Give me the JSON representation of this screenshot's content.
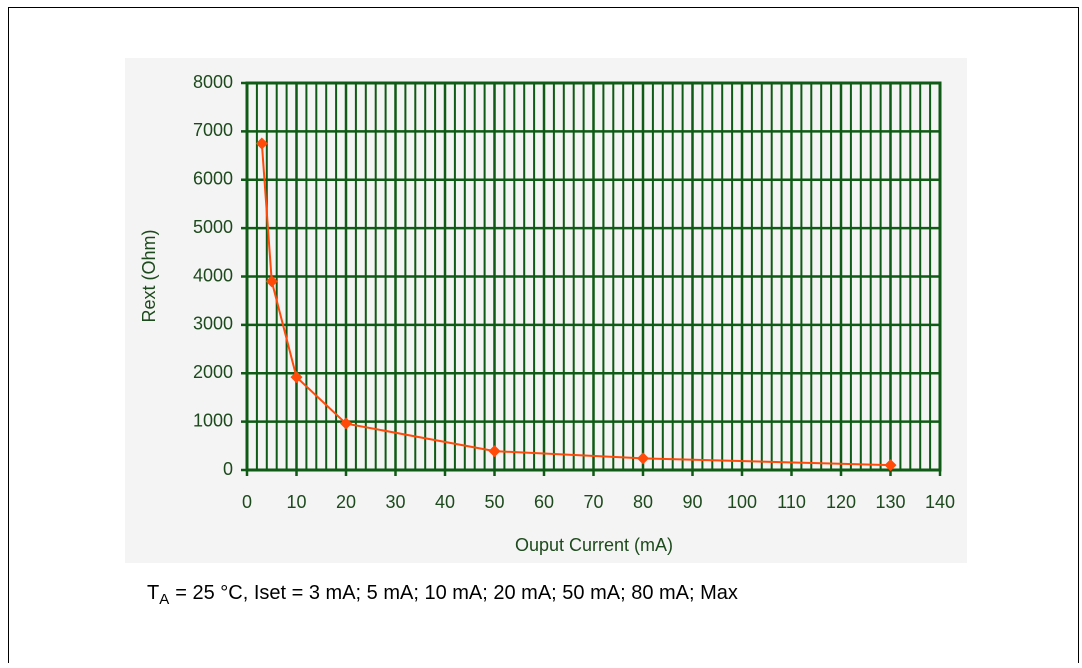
{
  "chart_data": {
    "type": "line",
    "x_label": "Ouput Current (mA)",
    "y_label": "Rext (Ohm)",
    "x": [
      3,
      5,
      10,
      20,
      50,
      80,
      130
    ],
    "series": [
      {
        "color": "#ff4a0a",
        "values": [
          6750,
          3900,
          1920,
          960,
          390,
          240,
          100
        ]
      }
    ],
    "xlim": [
      0,
      140
    ],
    "xticks": [
      0,
      10,
      20,
      30,
      40,
      50,
      60,
      70,
      80,
      90,
      100,
      110,
      120,
      130,
      140
    ],
    "xminorticks": [
      2,
      4,
      6,
      8,
      12,
      14,
      16,
      18,
      22,
      24,
      26,
      28,
      32,
      34,
      36,
      38,
      42,
      44,
      46,
      48,
      52,
      54,
      56,
      58,
      62,
      64,
      66,
      68,
      72,
      74,
      76,
      78,
      82,
      84,
      86,
      88,
      92,
      94,
      96,
      98,
      102,
      104,
      106,
      108,
      112,
      114,
      116,
      118,
      122,
      124,
      126,
      128,
      132,
      134,
      136,
      138
    ],
    "ylim": [
      0,
      8000
    ],
    "yticks": [
      0,
      1000,
      2000,
      3000,
      4000,
      5000,
      6000,
      7000,
      8000
    ],
    "grid": true,
    "grid_color": "#0f5a14",
    "caption": {
      "symbol": "T",
      "subscript": "A",
      "text": "= 25 °C, Iset = 3 mA; 5 mA; 10 mA; 20 mA; 50 mA; 80 mA; Max"
    }
  }
}
